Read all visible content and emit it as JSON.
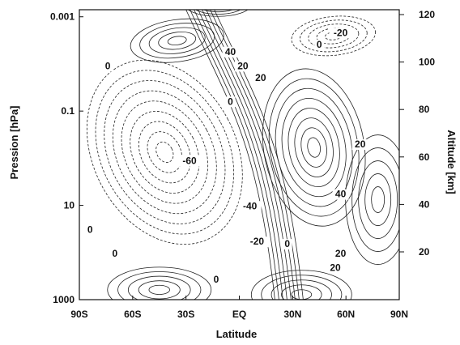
{
  "chart_data": {
    "type": "contour",
    "xlabel": "Latitude",
    "ylabel_left": "Pression [hPa]",
    "ylabel_right": "Altitude [km]",
    "x_ticks": [
      "90S",
      "60S",
      "30S",
      "EQ",
      "30N",
      "60N",
      "90N"
    ],
    "x_values": [
      -90,
      -60,
      -30,
      0,
      30,
      60,
      90
    ],
    "xlim": [
      -90,
      90
    ],
    "left_ticks": [
      "0.001",
      "0.1",
      "10",
      "1000"
    ],
    "left_tick_values_hPa": [
      0.001,
      0.1,
      10,
      1000
    ],
    "left_scale": "log",
    "right_ticks": [
      "20",
      "40",
      "60",
      "80",
      "100",
      "120"
    ],
    "right_tick_values_km": [
      20,
      40,
      60,
      80,
      100,
      120
    ],
    "contour_labels": [
      {
        "text": "40",
        "lat": -5,
        "alt_km": 103
      },
      {
        "text": "20",
        "lat": 12,
        "alt_km": 92
      },
      {
        "text": "20",
        "lat": 2,
        "alt_km": 97
      },
      {
        "text": "0",
        "lat": 45,
        "alt_km": 106
      },
      {
        "text": "-20",
        "lat": 57,
        "alt_km": 111
      },
      {
        "text": "0",
        "lat": -74,
        "alt_km": 97
      },
      {
        "text": "0",
        "lat": -5,
        "alt_km": 82
      },
      {
        "text": "20",
        "lat": 68,
        "alt_km": 64
      },
      {
        "text": "-60",
        "lat": -28,
        "alt_km": 57
      },
      {
        "text": "40",
        "lat": 57,
        "alt_km": 43
      },
      {
        "text": "-40",
        "lat": 6,
        "alt_km": 38
      },
      {
        "text": "0",
        "lat": -84,
        "alt_km": 28
      },
      {
        "text": "-20",
        "lat": 10,
        "alt_km": 23
      },
      {
        "text": "0",
        "lat": 27,
        "alt_km": 22
      },
      {
        "text": "0",
        "lat": -70,
        "alt_km": 18
      },
      {
        "text": "20",
        "lat": 57,
        "alt_km": 18
      },
      {
        "text": "20",
        "lat": 54,
        "alt_km": 12
      },
      {
        "text": "0",
        "lat": -13,
        "alt_km": 7
      }
    ],
    "features": [
      {
        "kind": "max",
        "lat": -35,
        "alt_km": 109,
        "contours": "solid"
      },
      {
        "kind": "max",
        "lat": -12,
        "alt_km": 124,
        "contours": "solid"
      },
      {
        "kind": "min",
        "lat": 53,
        "alt_km": 111,
        "contours": "dashed"
      },
      {
        "kind": "min",
        "lat": -42,
        "alt_km": 62,
        "contours": "dashed"
      },
      {
        "kind": "max",
        "lat": 42,
        "alt_km": 64,
        "contours": "solid"
      },
      {
        "kind": "max",
        "lat": 78,
        "alt_km": 42,
        "contours": "solid"
      },
      {
        "kind": "max",
        "lat": -45,
        "alt_km": 4,
        "contours": "solid"
      },
      {
        "kind": "max",
        "lat": 35,
        "alt_km": 2,
        "contours": "solid"
      }
    ],
    "grid": false,
    "legend": "none"
  }
}
